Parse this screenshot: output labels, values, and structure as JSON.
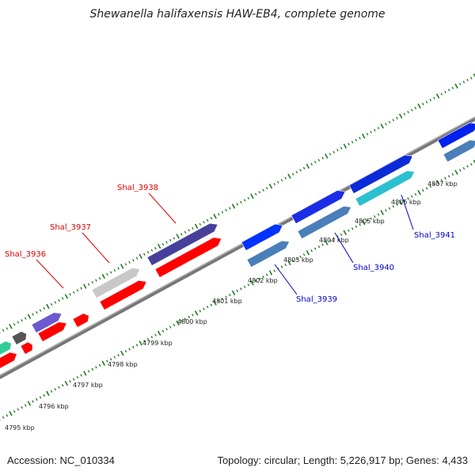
{
  "title": "Shewanella halifaxensis HAW-EB4, complete genome",
  "accession": "Accession: NC_010334",
  "topology": "Topology: circular; Length: 5,226,917 bp; Genes: 4,433",
  "kbp_labels": [
    "4795 kbp",
    "4796 kbp",
    "4797 kbp",
    "4798 kbp",
    "4799 kbp",
    "4800 kbp",
    "4801 kbp",
    "4802 kbp",
    "4803 kbp",
    "4804 kbp",
    "4805 kbp",
    "4806 kbp",
    "4807 kbp"
  ],
  "gene_labels": [
    {
      "text": "Shal_3936",
      "strand": "forward",
      "color": "#dd0000"
    },
    {
      "text": "Shal_3937",
      "strand": "forward",
      "color": "#dd0000"
    },
    {
      "text": "Shal_3938",
      "strand": "forward",
      "color": "#dd0000"
    },
    {
      "text": "Shal_3939",
      "strand": "reverse",
      "color": "#0000cc"
    },
    {
      "text": "Shal_3940",
      "strand": "reverse",
      "color": "#0000cc"
    },
    {
      "text": "Shal_3941",
      "strand": "reverse",
      "color": "#0000cc"
    }
  ],
  "colors": {
    "forward_label": "#dd0000",
    "reverse_label": "#0000cc",
    "backbone": "#888888",
    "ticks": "#1f7a1f"
  }
}
